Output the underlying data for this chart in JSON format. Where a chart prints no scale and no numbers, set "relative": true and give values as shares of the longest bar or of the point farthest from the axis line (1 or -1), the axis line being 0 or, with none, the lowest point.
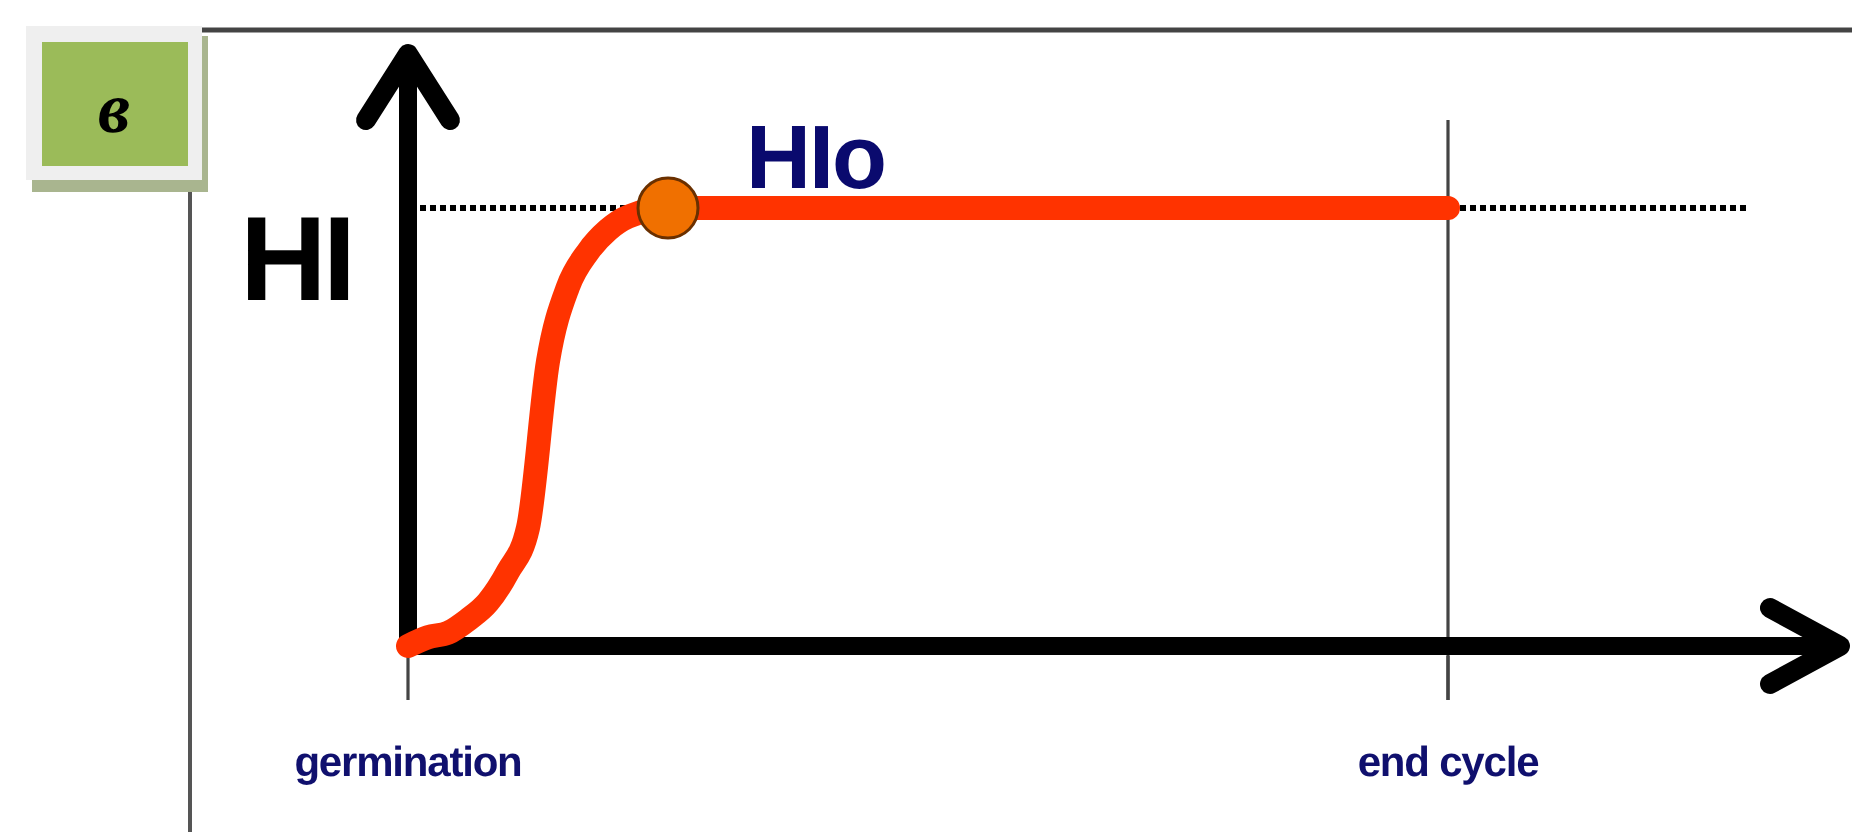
{
  "chart_data": {
    "type": "line",
    "title": "в",
    "ylabel": "HI",
    "relative": true,
    "categories": [
      "germination",
      null,
      null,
      null,
      null,
      null,
      null,
      null,
      null,
      null,
      null,
      null,
      null,
      null,
      null,
      null,
      null,
      null,
      null,
      null,
      null,
      null,
      null,
      null,
      null,
      null,
      null,
      null,
      null,
      null,
      null,
      null,
      null,
      null,
      null,
      null,
      null,
      null,
      null,
      null,
      null,
      null,
      null,
      null,
      null,
      null,
      null,
      null,
      null,
      null,
      null,
      null,
      "end cycle",
      null,
      null,
      null,
      null,
      null,
      null,
      null,
      null,
      null,
      null,
      null,
      null,
      null,
      null,
      null
    ],
    "series": [
      {
        "color": "#ff3300",
        "values": [
          0,
          0.02,
          0.03,
          0.06,
          0.1,
          0.17,
          0.27,
          0.65,
          0.82,
          0.9,
          0.95,
          0.98,
          null,
          1,
          null,
          1,
          1,
          1,
          1,
          1,
          1,
          1,
          1,
          1,
          1,
          1,
          1,
          1,
          1,
          1,
          1,
          1,
          1,
          1,
          1,
          1,
          1,
          1,
          1,
          1,
          1,
          1,
          1,
          1,
          1,
          1,
          1,
          1,
          1,
          1,
          1,
          1,
          1,
          null,
          null,
          null,
          null,
          null,
          null,
          null,
          null,
          null,
          null,
          null,
          null,
          null,
          null,
          null
        ]
      },
      {
        "type": "scatter",
        "color": "#f07000",
        "marker": "circle",
        "values": [
          null,
          null,
          null,
          null,
          null,
          null,
          null,
          null,
          null,
          null,
          null,
          null,
          null,
          1,
          null,
          null,
          null,
          null,
          null,
          null,
          null,
          null,
          null,
          null,
          null,
          null,
          null,
          null,
          null,
          null,
          null,
          null,
          null,
          null,
          null,
          null,
          null,
          null,
          null,
          null,
          null,
          null,
          null,
          null,
          null,
          null,
          null,
          null,
          null,
          null,
          null,
          null,
          null,
          null,
          null,
          null,
          null,
          null,
          null,
          null,
          null,
          null,
          null,
          null,
          null,
          null,
          null,
          null
        ]
      }
    ],
    "ref_lines": [
      {
        "axis": "y",
        "value": 1,
        "color": "#000000",
        "line_style": "dotted"
      },
      {
        "axis": "x",
        "value": "end cycle",
        "color": "#444444",
        "line_style": "solid"
      }
    ],
    "annotations": [
      {
        "text": "HIo",
        "y": 1
      }
    ]
  }
}
